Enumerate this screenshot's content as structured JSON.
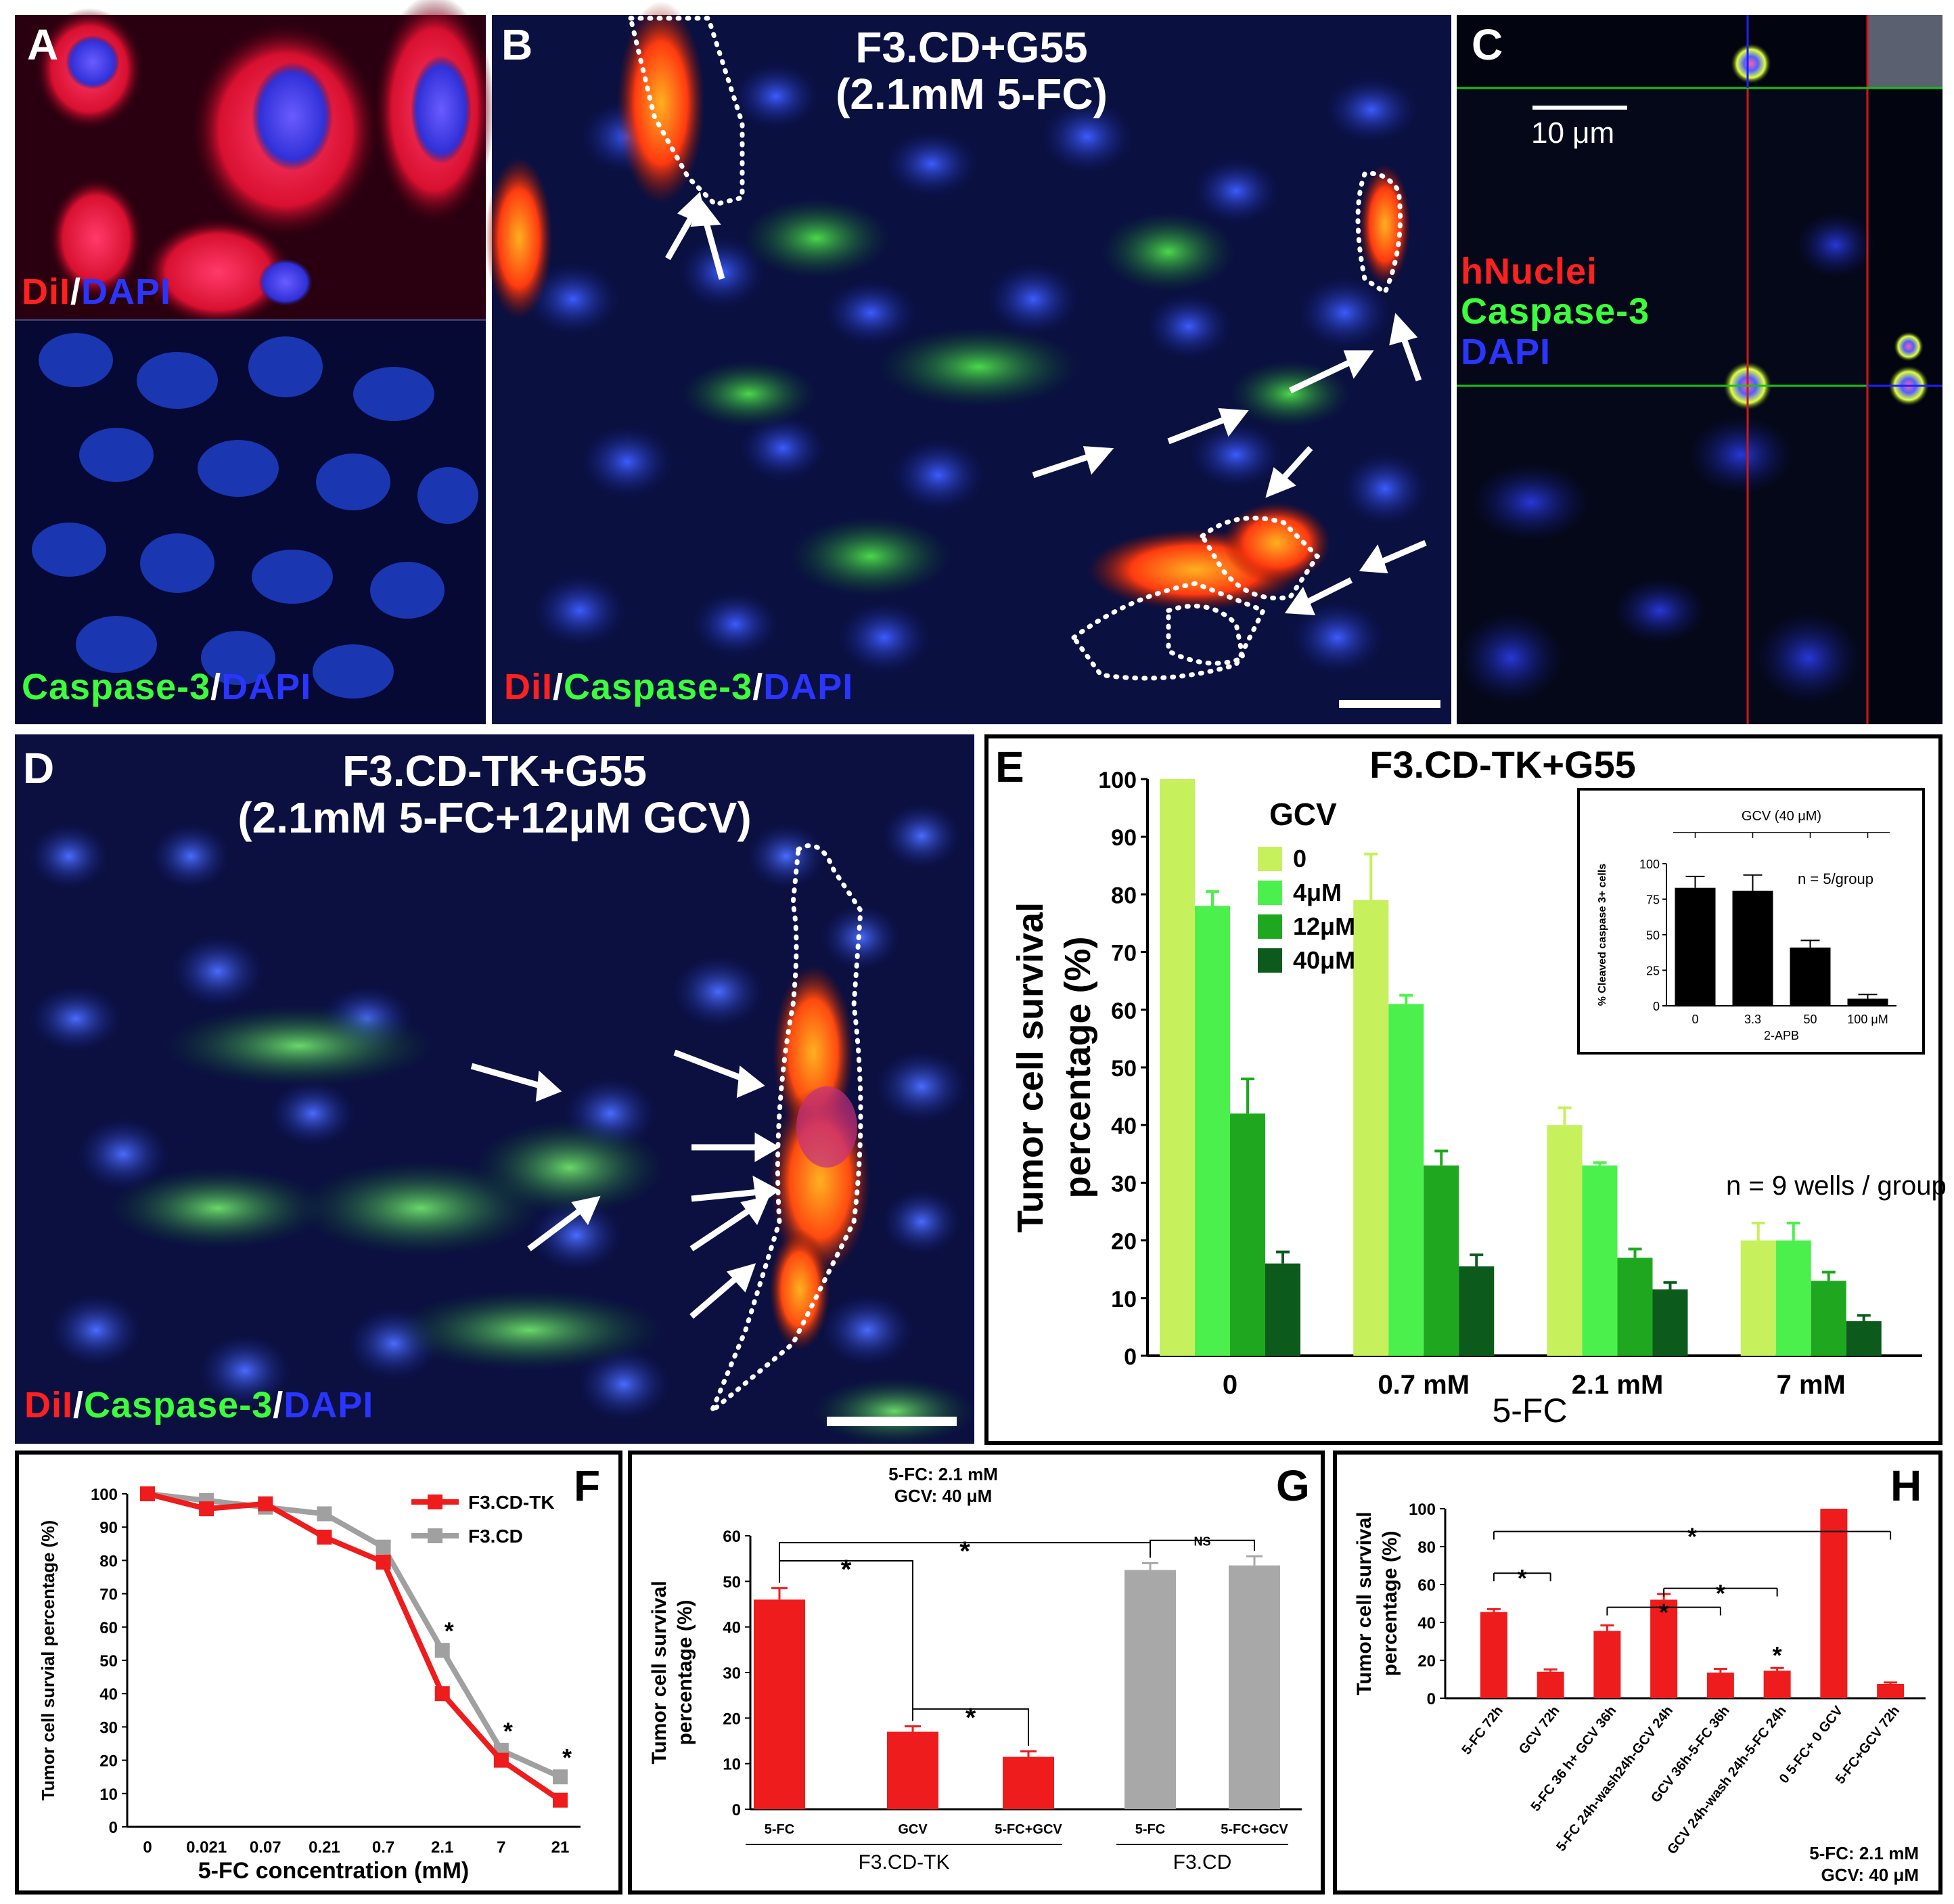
{
  "panels": {
    "A": {
      "letter": "A",
      "top_legend": {
        "p1": "DiI",
        "sep": "/",
        "p2": "DAPI"
      },
      "bottom_legend": {
        "p1": "Caspase-3",
        "sep": "/",
        "p2": "DAPI"
      }
    },
    "B": {
      "letter": "B",
      "title_line1": "F3.CD+G55",
      "title_line2": "(2.1mM 5-FC)",
      "legend": {
        "p1": "DiI",
        "sep1": "/",
        "p2": "Caspase-3",
        "sep2": "/",
        "p3": "DAPI"
      }
    },
    "C": {
      "letter": "C",
      "scale_label": "10 μm",
      "legend": {
        "l1": "hNuclei",
        "l2": "Caspase-3",
        "l3": "DAPI"
      }
    },
    "D": {
      "letter": "D",
      "title_line1": "F3.CD-TK+G55",
      "title_line2": "(2.1mM 5-FC+12μM GCV)",
      "legend": {
        "p1": "DiI",
        "sep1": "/",
        "p2": "Caspase-3",
        "sep2": "/",
        "p3": "DAPI"
      }
    },
    "E": {
      "letter": "E"
    },
    "F": {
      "letter": "F"
    },
    "G": {
      "letter": "G"
    },
    "H": {
      "letter": "H"
    }
  },
  "colors": {
    "red": "#ff2020",
    "green": "#3cff3c",
    "blue": "#2a35ff",
    "gcv0": "#c6f05c",
    "gcv4": "#4cf04c",
    "gcv12": "#1fa81f",
    "gcv40": "#0c5a1c",
    "bar_red": "#ee1c1c",
    "bar_gray": "#a8a8a8",
    "line_gray": "#a0a0a0"
  },
  "chart_data": [
    {
      "id": "E",
      "type": "bar",
      "title": "F3.CD-TK+G55",
      "xlabel": "5-FC",
      "ylabel": "Tumor cell survival percentage (%)",
      "categories": [
        "0",
        "0.7 mM",
        "2.1 mM",
        "7 mM"
      ],
      "legend_title": "GCV",
      "series": [
        {
          "name": "0",
          "values": [
            100,
            79,
            40,
            20
          ],
          "errors": [
            0,
            8,
            3,
            3
          ]
        },
        {
          "name": "4μM",
          "values": [
            78,
            61,
            33,
            20
          ],
          "errors": [
            2.5,
            1.5,
            0.5,
            3
          ]
        },
        {
          "name": "12μM",
          "values": [
            42,
            33,
            17,
            13
          ],
          "errors": [
            6,
            2.5,
            1.5,
            1.5
          ]
        },
        {
          "name": "40μM",
          "values": [
            16,
            15.5,
            11.5,
            6
          ],
          "errors": [
            2,
            2,
            1.2,
            1
          ]
        }
      ],
      "ylim": [
        0,
        100
      ],
      "yticks": [
        0,
        10,
        20,
        30,
        40,
        50,
        60,
        70,
        80,
        90,
        100
      ],
      "annotation": "n = 9 wells / group",
      "inset": {
        "type": "bar",
        "title": "GCV (40 μM)",
        "xlabel": "2-APB",
        "ylabel": "% Cleaved caspase 3+ cells",
        "categories": [
          "0",
          "3.3",
          "50",
          "100 μM"
        ],
        "values": [
          83,
          81,
          41,
          5
        ],
        "errors": [
          8,
          11,
          5,
          3
        ],
        "ylim": [
          0,
          100
        ],
        "yticks": [
          0,
          25,
          50,
          75,
          100
        ],
        "annotation": "n = 5/group"
      }
    },
    {
      "id": "F",
      "type": "line",
      "xlabel": "5-FC concentration (mM)",
      "ylabel": "Tumor cell survial percentage (%)",
      "categories": [
        "0",
        "0.021",
        "0.07",
        "0.21",
        "0.7",
        "2.1",
        "7",
        "21"
      ],
      "series": [
        {
          "name": "F3.CD-TK",
          "values": [
            100,
            95.5,
            97,
            87,
            79.5,
            40,
            20,
            8
          ]
        },
        {
          "name": "F3.CD",
          "values": [
            100,
            98,
            96,
            94,
            84,
            53,
            23,
            15
          ]
        }
      ],
      "significance": [
        "",
        "",
        "",
        "",
        "",
        "*",
        "*",
        "*"
      ],
      "ylim": [
        0,
        100
      ],
      "yticks": [
        0,
        10,
        20,
        30,
        40,
        50,
        60,
        70,
        80,
        90,
        100
      ]
    },
    {
      "id": "G",
      "type": "bar",
      "header_line1": "5-FC: 2.1 mM",
      "header_line2": "GCV: 40 μM",
      "ylabel": "Tumor cell survival percentage (%)",
      "categories": [
        "5-FC",
        "GCV",
        "5-FC+GCV",
        "5-FC",
        "5-FC+GCV"
      ],
      "groups": [
        {
          "name": "F3.CD-TK",
          "span": [
            0,
            2
          ]
        },
        {
          "name": "F3.CD",
          "span": [
            3,
            4
          ]
        }
      ],
      "values": [
        46,
        17,
        11.5,
        52.5,
        53.5
      ],
      "errors": [
        2.5,
        1.2,
        1.2,
        1.5,
        2
      ],
      "ylim": [
        0,
        60
      ],
      "yticks": [
        0,
        10,
        20,
        30,
        40,
        50,
        60
      ],
      "brackets": [
        {
          "from": 0,
          "to": 1,
          "label": "*"
        },
        {
          "from": 0,
          "to": 3,
          "label": "*"
        },
        {
          "from": 1,
          "to": 2,
          "label": "*"
        },
        {
          "from": 3,
          "to": 4,
          "label": "NS"
        }
      ]
    },
    {
      "id": "H",
      "type": "bar",
      "ylabel": "Tumor cell survival percentage (%)",
      "categories": [
        "5-FC 72h",
        "GCV 72h",
        "5-FC 36 h+ GCV 36h",
        "5-FC 24h-wash24h-GCV 24h",
        "GCV 36h-5-FC 36h",
        "GCV 24h-wash 24h-5-FC 24h",
        "0 5-FC+ 0 GCV",
        "5-FC+GCV 72h"
      ],
      "values": [
        45.5,
        14,
        35.5,
        52,
        13.5,
        14.5,
        100,
        7.5
      ],
      "errors": [
        1.5,
        1.2,
        3,
        3,
        2,
        1.5,
        0,
        0.8
      ],
      "ylim": [
        0,
        100
      ],
      "yticks": [
        0,
        20,
        40,
        60,
        80,
        100
      ],
      "footer_line1": "5-FC: 2.1 mM",
      "footer_line2": "GCV: 40 μM",
      "brackets": [
        {
          "from": 0,
          "to": 1,
          "label": "*"
        },
        {
          "from": 2,
          "to": 4,
          "label": "*"
        },
        {
          "from": 3,
          "to": 5,
          "label": "*"
        },
        {
          "from": 0,
          "to": 7,
          "label": "*"
        }
      ],
      "marks": [
        {
          "index": 5,
          "label": "*"
        }
      ]
    }
  ]
}
